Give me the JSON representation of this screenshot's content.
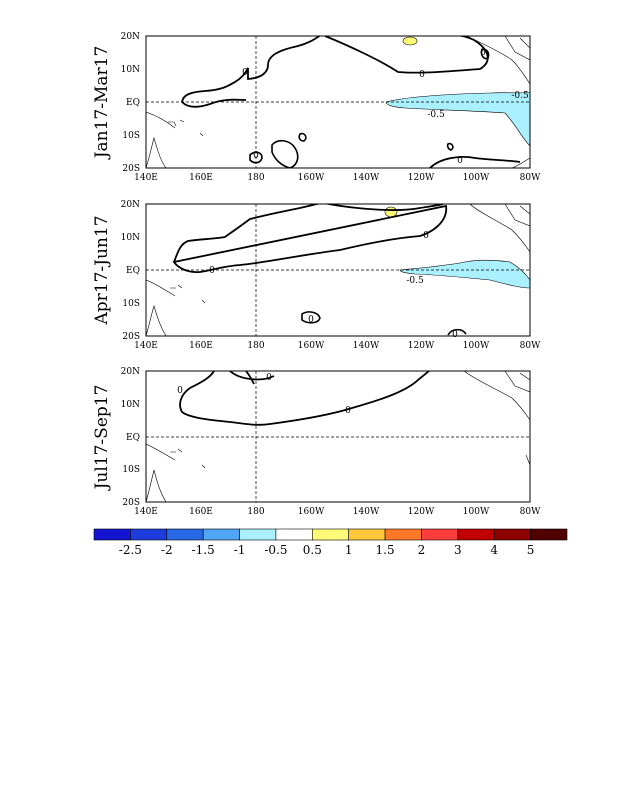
{
  "panels": [
    {
      "label": "Jan17-Mar17",
      "contour_labels": [
        "0",
        "0",
        "0",
        "0",
        "0",
        "-0.5",
        "-0.5"
      ]
    },
    {
      "label": "Apr17-Jun17",
      "contour_labels": [
        "0",
        "0",
        "0",
        "0",
        "-0.5"
      ]
    },
    {
      "label": "Jul17-Sep17",
      "contour_labels": [
        "0",
        "0",
        "0"
      ]
    }
  ],
  "axes": {
    "x_ticks": [
      "140E",
      "160E",
      "180",
      "160W",
      "140W",
      "120W",
      "100W",
      "80W"
    ],
    "y_ticks": [
      "20N",
      "10N",
      "EQ",
      "10S",
      "20S"
    ]
  },
  "colorbar": {
    "labels": [
      "-2.5",
      "-2",
      "-1.5",
      "-1",
      "-0.5",
      "0.5",
      "1",
      "1.5",
      "2",
      "3",
      "4",
      "5"
    ],
    "colors": [
      "#1414d2",
      "#1e3cdc",
      "#2869e6",
      "#50a5f5",
      "#aaf0ff",
      "#ffffff",
      "#fffa78",
      "#ffc83c",
      "#ff7828",
      "#ff3c3c",
      "#c00000",
      "#8c0000",
      "#500000"
    ]
  }
}
